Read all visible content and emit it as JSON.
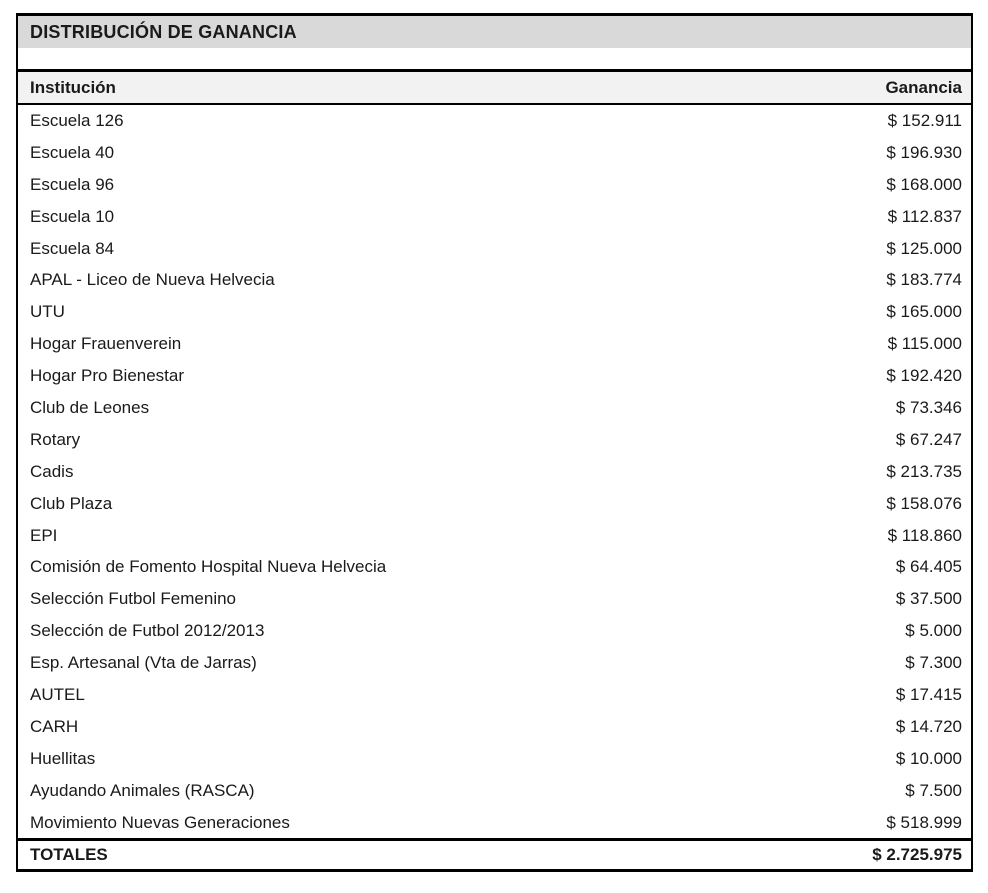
{
  "document": {
    "title": "DISTRIBUCIÓN DE GANANCIA"
  },
  "table": {
    "column_headers": {
      "institucion": "Institución",
      "ganancia": "Ganancia"
    },
    "rows": [
      {
        "institucion": "Escuela 126",
        "ganancia": "$ 152.911"
      },
      {
        "institucion": "Escuela 40",
        "ganancia": "$ 196.930"
      },
      {
        "institucion": "Escuela 96",
        "ganancia": "$ 168.000"
      },
      {
        "institucion": "Escuela 10",
        "ganancia": "$ 112.837"
      },
      {
        "institucion": "Escuela 84",
        "ganancia": "$ 125.000"
      },
      {
        "institucion": "APAL - Liceo de Nueva Helvecia",
        "ganancia": "$ 183.774"
      },
      {
        "institucion": "UTU",
        "ganancia": "$ 165.000"
      },
      {
        "institucion": "Hogar Frauenverein",
        "ganancia": "$ 115.000"
      },
      {
        "institucion": "Hogar Pro Bienestar",
        "ganancia": "$ 192.420"
      },
      {
        "institucion": "Club de Leones",
        "ganancia": "$ 73.346"
      },
      {
        "institucion": "Rotary",
        "ganancia": "$ 67.247"
      },
      {
        "institucion": "Cadis",
        "ganancia": "$ 213.735"
      },
      {
        "institucion": "Club Plaza",
        "ganancia": "$ 158.076"
      },
      {
        "institucion": "EPI",
        "ganancia": "$ 118.860"
      },
      {
        "institucion": "Comisión de Fomento Hospital Nueva Helvecia",
        "ganancia": "$ 64.405"
      },
      {
        "institucion": "Selección Futbol Femenino",
        "ganancia": "$ 37.500"
      },
      {
        "institucion": "Selección de Futbol 2012/2013",
        "ganancia": "$ 5.000"
      },
      {
        "institucion": "Esp. Artesanal (Vta de Jarras)",
        "ganancia": "$ 7.300"
      },
      {
        "institucion": "AUTEL",
        "ganancia": "$ 17.415"
      },
      {
        "institucion": "CARH",
        "ganancia": "$ 14.720"
      },
      {
        "institucion": "Huellitas",
        "ganancia": "$ 10.000"
      },
      {
        "institucion": "Ayudando Animales (RASCA)",
        "ganancia": "$ 7.500"
      },
      {
        "institucion": "Movimiento Nuevas Generaciones",
        "ganancia": "$ 518.999"
      }
    ],
    "totals_row": {
      "label": "TOTALES",
      "value": "$ 2.725.975"
    }
  },
  "colors": {
    "title_bg": "#d9d9d9",
    "header_bg": "#f2f2f2",
    "border": "#000000",
    "text": "#1a1a1a",
    "page_bg": "#ffffff"
  }
}
